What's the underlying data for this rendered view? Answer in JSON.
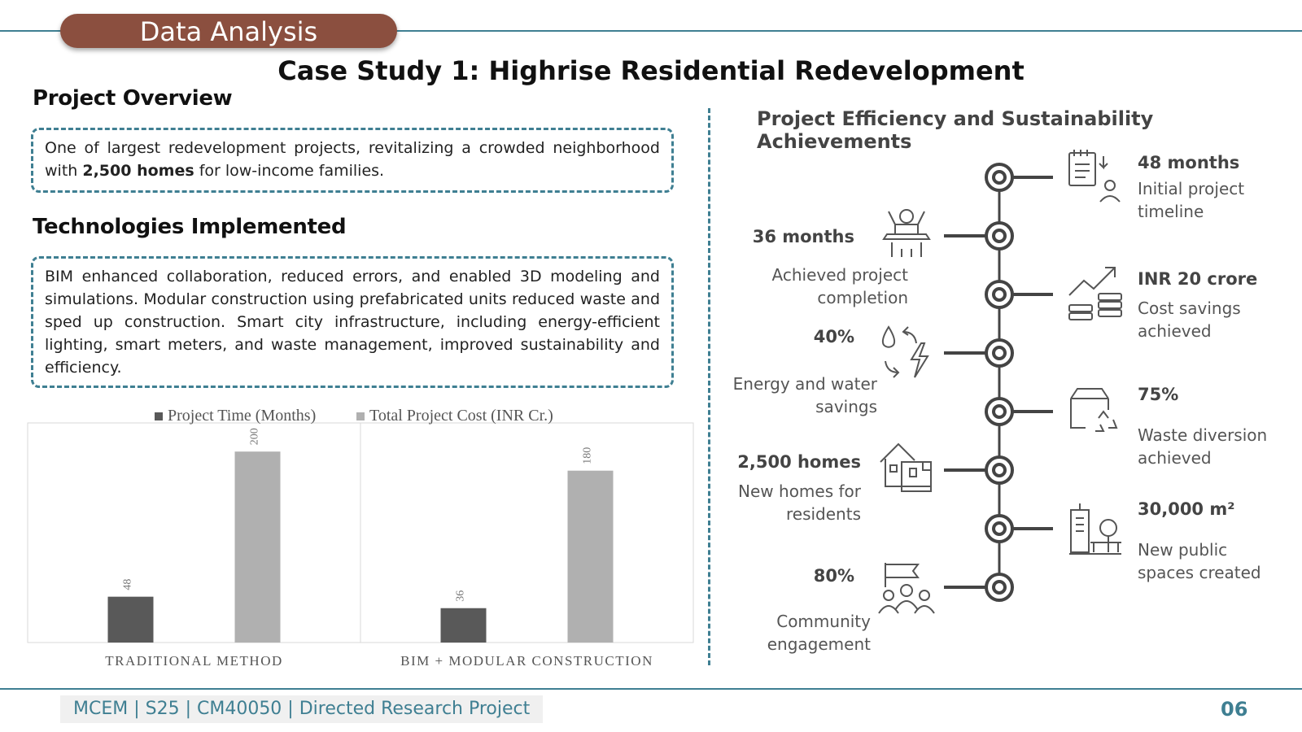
{
  "header": {
    "section_label": "Data Analysis",
    "title": "Case Study 1: Highrise Residential Redevelopment"
  },
  "overview": {
    "heading": "Project Overview",
    "text_pre": "One of  largest redevelopment projects, revitalizing a crowded neighborhood with ",
    "text_bold": "2,500 homes",
    "text_post": " for low-income families."
  },
  "technologies": {
    "heading": "Technologies Implemented",
    "text": "BIM enhanced collaboration, reduced errors, and enabled 3D modeling and simulations. Modular construction using prefabricated units reduced waste and sped up construction. Smart city infrastructure, including energy-efficient lighting, smart meters, and waste management, improved sustainability and efficiency."
  },
  "chart_data": {
    "type": "bar",
    "categories": [
      "TRADITIONAL METHOD",
      "BIM + MODULAR CONSTRUCTION"
    ],
    "series": [
      {
        "name": "Project Time (Months)",
        "values": [
          48,
          36
        ],
        "color": "#595959"
      },
      {
        "name": "Total Project Cost (INR Cr.)",
        "values": [
          200,
          180
        ],
        "color": "#b0b0b0"
      }
    ],
    "ylim": [
      0,
      230
    ],
    "legend_position": "top",
    "grid": false
  },
  "achievements": {
    "title": "Project Efficiency and Sustainability Achievements",
    "items": [
      {
        "value": "48 months",
        "label": "Initial project timeline",
        "icon": "timeline-clipboard-icon"
      },
      {
        "value": "36 months",
        "label": "Achieved project completion",
        "icon": "completion-person-icon"
      },
      {
        "value": "INR 20 crore",
        "label": "Cost savings achieved",
        "icon": "cost-savings-icon"
      },
      {
        "value": "40%",
        "label": "Energy and water savings",
        "icon": "energy-water-icon"
      },
      {
        "value": "75%",
        "label": "Waste diversion achieved",
        "icon": "recycle-box-icon"
      },
      {
        "value": "2,500 homes",
        "label": "New homes for residents",
        "icon": "house-icon"
      },
      {
        "value": "30,000 m²",
        "label": "New public spaces created",
        "icon": "public-space-icon"
      },
      {
        "value": "80%",
        "label": "Community engagement",
        "icon": "community-flag-icon"
      }
    ]
  },
  "footer": {
    "text": "MCEM  | S25 | CM40050 | Directed Research  Project",
    "page": "06"
  },
  "colors": {
    "accent": "#3f7f92",
    "pill": "#8b4f3f",
    "bar_dark": "#595959",
    "bar_light": "#b0b0b0"
  }
}
